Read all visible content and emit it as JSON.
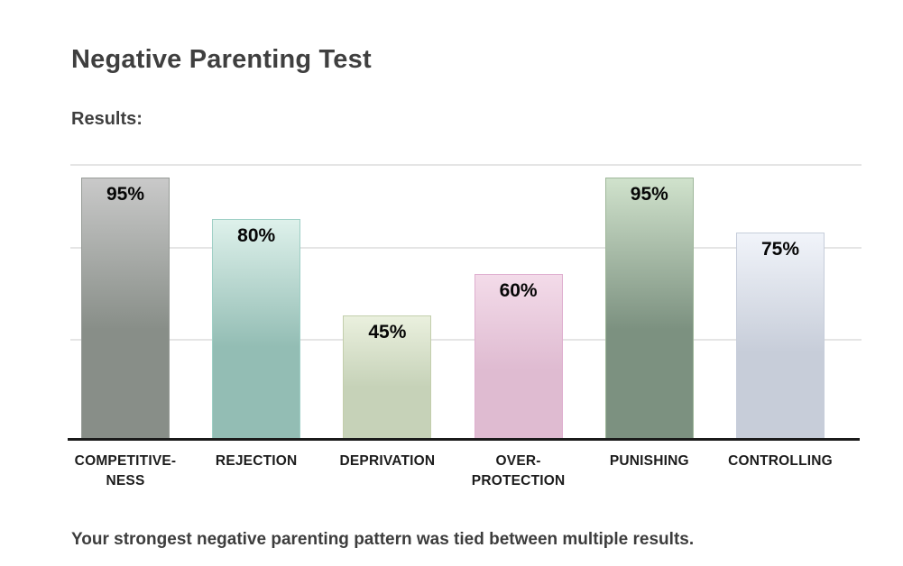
{
  "header": {
    "title": "Negative Parenting Test",
    "results_label": "Results:"
  },
  "chart_data": {
    "type": "bar",
    "title": "Negative Parenting Test",
    "subtitle": "Results:",
    "categories": [
      "COMPETITIVE-NESS",
      "REJECTION",
      "DEPRIVATION",
      "OVER-PROTECTION",
      "PUNISHING",
      "CONTROLLING"
    ],
    "values": [
      95,
      80,
      45,
      60,
      95,
      75
    ],
    "value_suffix": "%",
    "ylim": [
      0,
      100
    ],
    "legend": "none",
    "grid": "horizontal",
    "gridline_levels_pct": [
      100,
      70,
      36.6
    ],
    "grid_color": "#e5e5e5",
    "axis_color": "#1b1b1b",
    "bars": [
      {
        "label_lines": [
          "COMPETITIVE-",
          "NESS"
        ],
        "value": 95,
        "display_value": "95%",
        "color_top": "#c9c9c9",
        "color_bottom": "#888e88",
        "border_color": "#979b97"
      },
      {
        "label_lines": [
          "REJECTION"
        ],
        "value": 80,
        "display_value": "80%",
        "color_top": "#def1eb",
        "color_bottom": "#93bdb4",
        "border_color": "#9ecfc5"
      },
      {
        "label_lines": [
          "DEPRIVATION"
        ],
        "value": 45,
        "display_value": "45%",
        "color_top": "#eaf0de",
        "color_bottom": "#c6d2b8",
        "border_color": "#c3ceac"
      },
      {
        "label_lines": [
          "OVER-",
          "PROTECTION"
        ],
        "value": 60,
        "display_value": "60%",
        "color_top": "#f3dbe9",
        "color_bottom": "#dfbbd1",
        "border_color": "#dfaecf"
      },
      {
        "label_lines": [
          "PUNISHING"
        ],
        "value": 95,
        "display_value": "95%",
        "color_top": "#d0e2cc",
        "color_bottom": "#7c9180",
        "border_color": "#9fb79a"
      },
      {
        "label_lines": [
          "CONTROLLING"
        ],
        "value": 75,
        "display_value": "75%",
        "color_top": "#f1f4fa",
        "color_bottom": "#c7cdd9",
        "border_color": "#c6cdda"
      }
    ]
  },
  "footer": {
    "summary": "Your strongest negative parenting pattern was tied between multiple results."
  }
}
